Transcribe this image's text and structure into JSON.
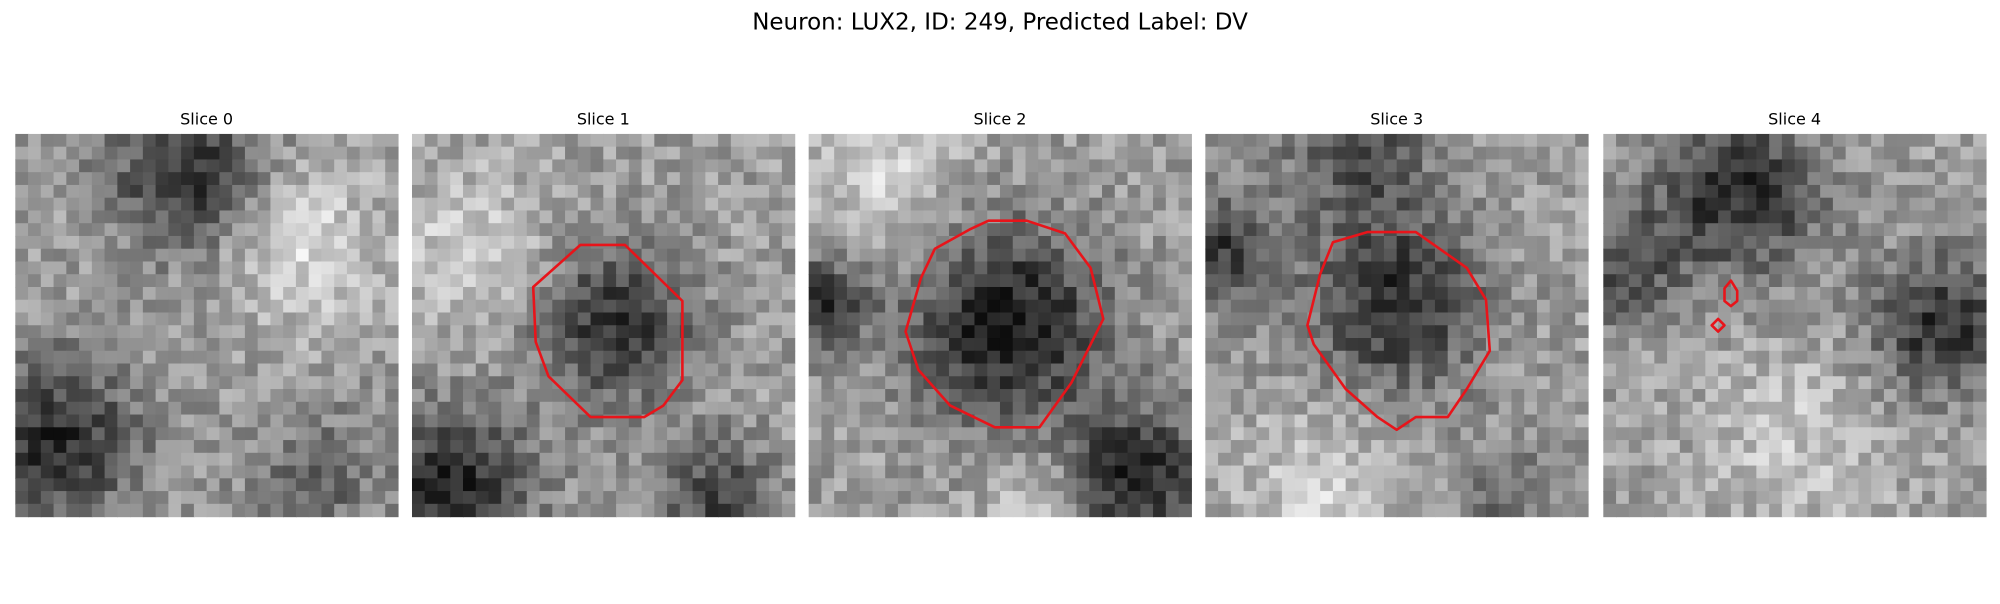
{
  "title": "Neuron: LUX2, ID: 249, Predicted Label: DV",
  "panels": [
    {
      "title": "Slice 0"
    },
    {
      "title": "Slice 1"
    },
    {
      "title": "Slice 2"
    },
    {
      "title": "Slice 3"
    },
    {
      "title": "Slice 4"
    }
  ]
}
